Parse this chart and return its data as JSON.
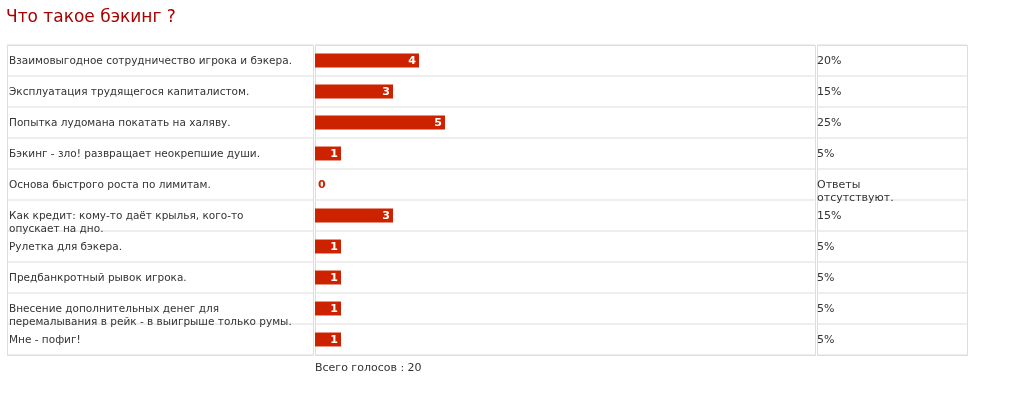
{
  "chart_data": {
    "type": "bar",
    "orientation": "horizontal",
    "title": "Что такое бэкинг ?",
    "categories": [
      "Взаимовыгодное сотрудничество игрока и бэкера.",
      "Эксплуатация трудящегося капиталистом.",
      "Попытка лудомана покатать на халяву.",
      "Бэкинг - зло! развращает неокрепшие души.",
      "Основа быстрого роста по лимитам.",
      "Как кредит: кому-то даёт крылья, кого-то опускает на дно.",
      "Рулетка для бэкера.",
      "Предбанкротный рывок игрока.",
      "Внесение дополнительных денег для перемалывания в рейк - в выигрыше только румы.",
      "Мне - пофиг!"
    ],
    "values": [
      4,
      3,
      5,
      1,
      0,
      3,
      1,
      1,
      1,
      1
    ],
    "color": "#cc2200",
    "data_labels": true,
    "annotations": [
      "20%",
      "15%",
      "25%",
      "5%",
      "Ответы отсутствуют.",
      "15%",
      "5%",
      "5%",
      "5%",
      "5%",
      "Всего голосов : 20"
    ]
  }
}
